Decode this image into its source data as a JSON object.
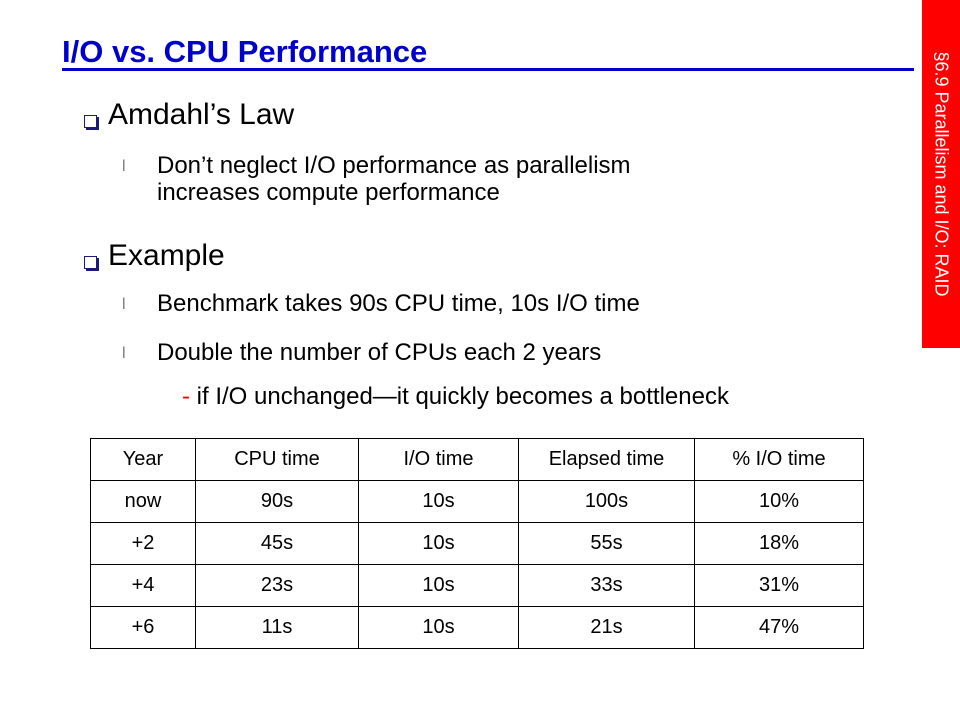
{
  "slide": {
    "title": "I/O vs. CPU Performance",
    "section_tab": "§6.9 Parallelism and I/O: RAID",
    "bullets": [
      {
        "text": "Amdahl’s Law",
        "subs": [
          "Don’t neglect I/O performance as parallelism",
          "increases compute performance"
        ]
      },
      {
        "text": "Example",
        "subs": [
          "Benchmark takes 90s CPU time, 10s I/O time",
          "Double the number of CPUs each 2 years"
        ],
        "subsub_dash": "-",
        "subsub": "if I/O unchanged—it quickly becomes a bottleneck"
      }
    ]
  },
  "table": {
    "headers": [
      "Year",
      "CPU time",
      "I/O time",
      "Elapsed time",
      "% I/O time"
    ],
    "rows": [
      [
        "now",
        "90s",
        "10s",
        "100s",
        "10%"
      ],
      [
        "+2",
        "45s",
        "10s",
        "55s",
        "18%"
      ],
      [
        "+4",
        "23s",
        "10s",
        "33s",
        "31%"
      ],
      [
        "+6",
        "11s",
        "10s",
        "21s",
        "47%"
      ]
    ]
  },
  "colors": {
    "title": "#0000cc",
    "tab": "#ff0000",
    "dash": "#ff0000"
  }
}
